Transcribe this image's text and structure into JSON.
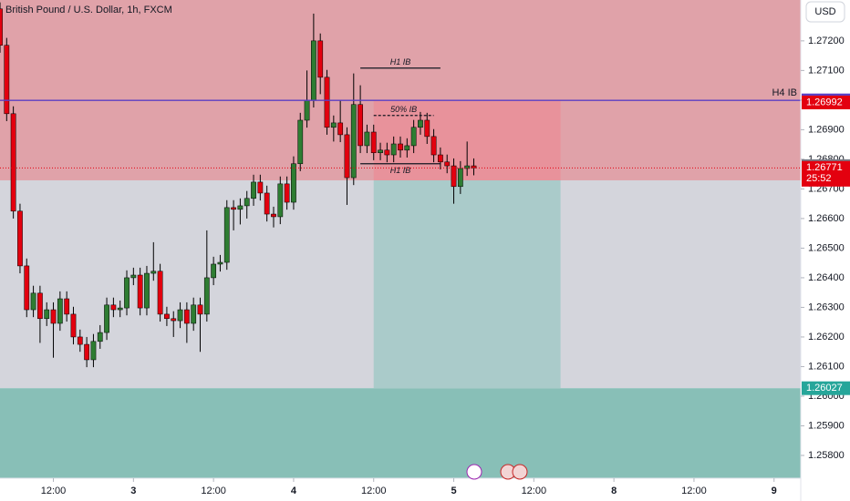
{
  "chart_data": {
    "type": "candlestick",
    "title": "British Pound / U.S. Dollar, 1h, FXCM",
    "currency": "USD",
    "up_color": "#2e7d32",
    "down_color": "#e3000f",
    "grid": false,
    "ylim": [
      1.25723,
      1.27338
    ],
    "yticks": [
      {
        "value": 1.258,
        "label": "1.25800"
      },
      {
        "value": 1.259,
        "label": "1.25900"
      },
      {
        "value": 1.26,
        "label": "1.26000"
      },
      {
        "value": 1.261,
        "label": "1.26100"
      },
      {
        "value": 1.262,
        "label": "1.26200"
      },
      {
        "value": 1.263,
        "label": "1.26300"
      },
      {
        "value": 1.264,
        "label": "1.26400"
      },
      {
        "value": 1.265,
        "label": "1.26500"
      },
      {
        "value": 1.266,
        "label": "1.26600"
      },
      {
        "value": 1.267,
        "label": "1.26700"
      },
      {
        "value": 1.268,
        "label": "1.26800"
      },
      {
        "value": 1.269,
        "label": "1.26900"
      },
      {
        "value": 1.27,
        "label": "1.27000"
      },
      {
        "value": 1.271,
        "label": "1.27100"
      },
      {
        "value": 1.272,
        "label": "1.27200"
      }
    ],
    "xlim": [
      -8,
      112
    ],
    "xticks": [
      {
        "value": 0,
        "label": "12:00"
      },
      {
        "value": 12,
        "label": "3"
      },
      {
        "value": 24,
        "label": "12:00"
      },
      {
        "value": 36,
        "label": "4"
      },
      {
        "value": 48,
        "label": "12:00"
      },
      {
        "value": 60,
        "label": "5"
      },
      {
        "value": 72,
        "label": "12:00"
      },
      {
        "value": 84,
        "label": "8"
      },
      {
        "value": 96,
        "label": "12:00"
      },
      {
        "value": 108,
        "label": "9"
      }
    ],
    "x": [
      -8,
      -7,
      -6,
      -5,
      -4,
      -3,
      -2,
      -1,
      0,
      1,
      2,
      3,
      4,
      5,
      6,
      7,
      8,
      9,
      10,
      11,
      12,
      13,
      14,
      15,
      16,
      17,
      18,
      19,
      20,
      21,
      22,
      23,
      24,
      25,
      26,
      27,
      28,
      29,
      30,
      31,
      32,
      33,
      34,
      35,
      36,
      37,
      38,
      39,
      40,
      41,
      42,
      43,
      44,
      45,
      46,
      47,
      48,
      49,
      50,
      51,
      52,
      53,
      54,
      55,
      56,
      57,
      58,
      59,
      60,
      61,
      62,
      63
    ],
    "open": [
      1.27308,
      1.27185,
      1.26954,
      1.26625,
      1.2644,
      1.26292,
      1.26348,
      1.26262,
      1.26292,
      1.26246,
      1.26329,
      1.26277,
      1.262,
      1.26175,
      1.26123,
      1.26185,
      1.26215,
      1.26308,
      1.26292,
      1.26298,
      1.264,
      1.26409,
      1.26298,
      1.26415,
      1.26422,
      1.26277,
      1.26262,
      1.26255,
      1.26292,
      1.26246,
      1.26308,
      1.26277,
      1.264,
      1.26446,
      1.26452,
      1.26637,
      1.26631,
      1.26643,
      1.26668,
      1.26723,
      1.26686,
      1.26615,
      1.26606,
      1.26717,
      1.26655,
      1.26785,
      1.26932,
      1.27,
      1.272,
      1.27077,
      1.26908,
      1.26923,
      1.26883,
      1.26738,
      1.26985,
      1.26846,
      1.26892,
      1.26822,
      1.26831,
      1.26815,
      1.26852,
      1.26831,
      1.26846,
      1.26908,
      1.26932,
      1.26877,
      1.26815,
      1.26791,
      1.26778,
      1.26708,
      1.26769,
      1.26778
    ],
    "high": [
      1.2733,
      1.2721,
      1.26979,
      1.2665,
      1.26465,
      1.26373,
      1.26373,
      1.26317,
      1.26317,
      1.26354,
      1.26354,
      1.26302,
      1.26225,
      1.262,
      1.2621,
      1.2624,
      1.26333,
      1.26333,
      1.26323,
      1.26425,
      1.26434,
      1.26434,
      1.2644,
      1.2652,
      1.26447,
      1.26302,
      1.26287,
      1.26317,
      1.26317,
      1.26333,
      1.26333,
      1.2656,
      1.26471,
      1.26477,
      1.26662,
      1.26662,
      1.26668,
      1.26693,
      1.26748,
      1.26748,
      1.26711,
      1.2664,
      1.26742,
      1.26742,
      1.2681,
      1.26957,
      1.271,
      1.27292,
      1.27225,
      1.27102,
      1.26948,
      1.27,
      1.26908,
      1.2709,
      1.2705,
      1.26917,
      1.26917,
      1.26856,
      1.26856,
      1.26877,
      1.26877,
      1.26871,
      1.26933,
      1.2696,
      1.26957,
      1.26902,
      1.2684,
      1.26816,
      1.26803,
      1.26794,
      1.2686,
      1.26803
    ],
    "low": [
      1.2716,
      1.26929,
      1.266,
      1.26415,
      1.26267,
      1.26267,
      1.2618,
      1.26237,
      1.2613,
      1.26221,
      1.26252,
      1.26175,
      1.2615,
      1.26098,
      1.26098,
      1.2616,
      1.2619,
      1.26267,
      1.26267,
      1.26273,
      1.26375,
      1.26273,
      1.26273,
      1.2639,
      1.26252,
      1.26237,
      1.262,
      1.2623,
      1.2618,
      1.26221,
      1.2615,
      1.26252,
      1.26375,
      1.26421,
      1.26427,
      1.2656,
      1.2658,
      1.266,
      1.26643,
      1.26661,
      1.2659,
      1.2657,
      1.26581,
      1.2663,
      1.2663,
      1.2676,
      1.26907,
      1.26975,
      1.2702,
      1.26883,
      1.2686,
      1.26858,
      1.26646,
      1.26713,
      1.26821,
      1.26821,
      1.26797,
      1.26797,
      1.2679,
      1.2679,
      1.26806,
      1.26806,
      1.26821,
      1.26883,
      1.26852,
      1.2679,
      1.26766,
      1.26753,
      1.2665,
      1.26683,
      1.26744,
      1.26746
    ],
    "close": [
      1.27185,
      1.26954,
      1.26625,
      1.2644,
      1.26292,
      1.26348,
      1.26262,
      1.26292,
      1.26246,
      1.26329,
      1.26277,
      1.262,
      1.26175,
      1.26123,
      1.26185,
      1.26215,
      1.26308,
      1.26292,
      1.26298,
      1.264,
      1.26409,
      1.26298,
      1.26415,
      1.26422,
      1.26277,
      1.26262,
      1.26255,
      1.26292,
      1.26246,
      1.26308,
      1.26277,
      1.264,
      1.26446,
      1.26452,
      1.26637,
      1.26631,
      1.26643,
      1.26668,
      1.26723,
      1.26686,
      1.26615,
      1.26606,
      1.26717,
      1.26655,
      1.26785,
      1.26932,
      1.27,
      1.272,
      1.27077,
      1.26908,
      1.26923,
      1.26883,
      1.26738,
      1.26985,
      1.26846,
      1.26892,
      1.26822,
      1.26831,
      1.26815,
      1.26852,
      1.26831,
      1.26846,
      1.26908,
      1.26932,
      1.26877,
      1.26815,
      1.26791,
      1.26778,
      1.26708,
      1.26769,
      1.26778,
      1.26771
    ],
    "zones": [
      {
        "from": 1.26729,
        "to": 1.27338,
        "color": "#e0a2a9"
      },
      {
        "from": 1.26027,
        "to": 1.26729,
        "color": "#d4d5dc"
      },
      {
        "from": 1.25723,
        "to": 1.26027,
        "color": "#88bfb7"
      }
    ],
    "position": {
      "x": [
        48,
        76
      ],
      "entry": 1.26729,
      "stop": 1.27,
      "target": 1.26027,
      "stop_color": "#e8929b",
      "target_color": "#aacbca"
    },
    "levels": [
      {
        "text": "H4 IB",
        "value": 1.26999,
        "color": "#5b3fc4"
      },
      {
        "text": "H1 IB",
        "value": 1.27108,
        "x": [
          46,
          58
        ],
        "color": "#131722"
      },
      {
        "text": "50% IB",
        "value": 1.26948,
        "x": [
          48,
          57
        ],
        "color": "#131722",
        "dashed": true
      },
      {
        "text": "H1 IB",
        "value": 1.26785,
        "x": [
          46,
          58
        ],
        "color": "#131722",
        "below": true
      }
    ],
    "markers": [
      {
        "value": 1.26999,
        "color": "#5b3fc4"
      },
      {
        "value": 1.26992,
        "color": "#e3000f"
      },
      {
        "value": 1.26777,
        "color": "#787b86"
      },
      {
        "value": 1.26771,
        "color": "#e3000f",
        "countdown": "25:52"
      },
      {
        "value": 1.26027,
        "color": "#26a69a"
      }
    ]
  }
}
